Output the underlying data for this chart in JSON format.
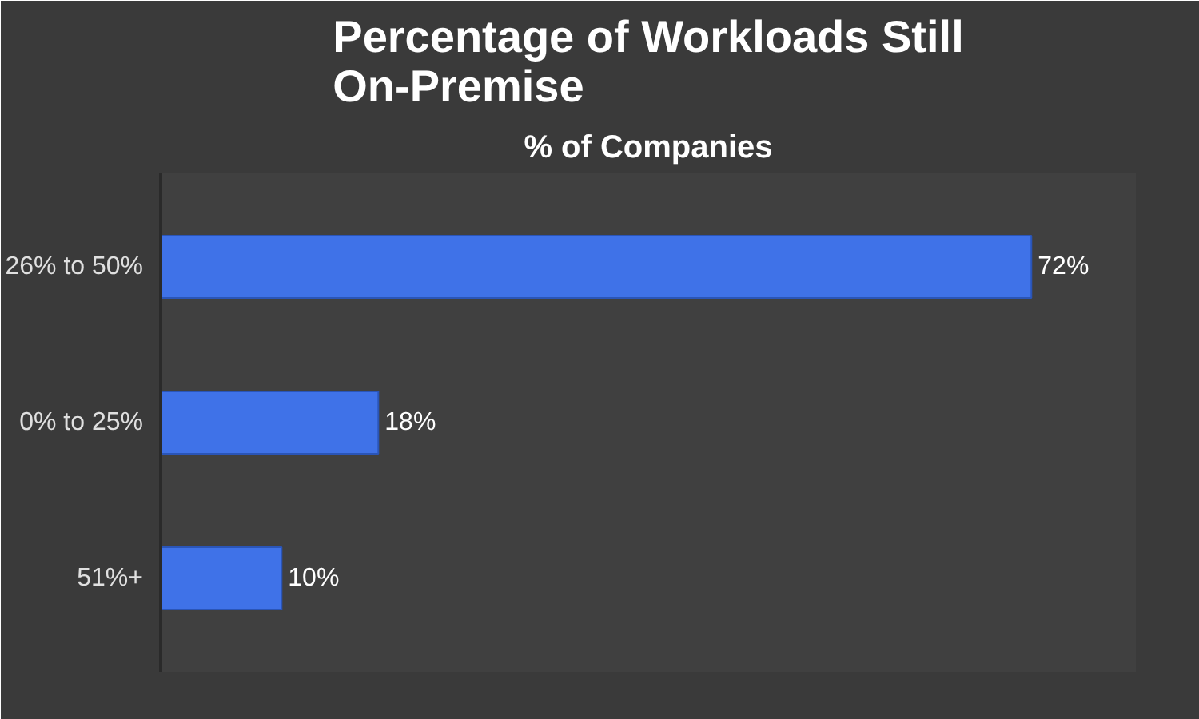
{
  "chart_data": {
    "type": "bar",
    "orientation": "horizontal",
    "title": "Percentage of Workloads Still On-Premise",
    "subtitle": "% of Companies",
    "categories": [
      "26% to 50%",
      "0% to 25%",
      "51%+"
    ],
    "values": [
      72,
      18,
      10
    ],
    "value_labels": [
      "72%",
      "18%",
      "10%"
    ],
    "color": "#3f72e8",
    "grid": false
  }
}
